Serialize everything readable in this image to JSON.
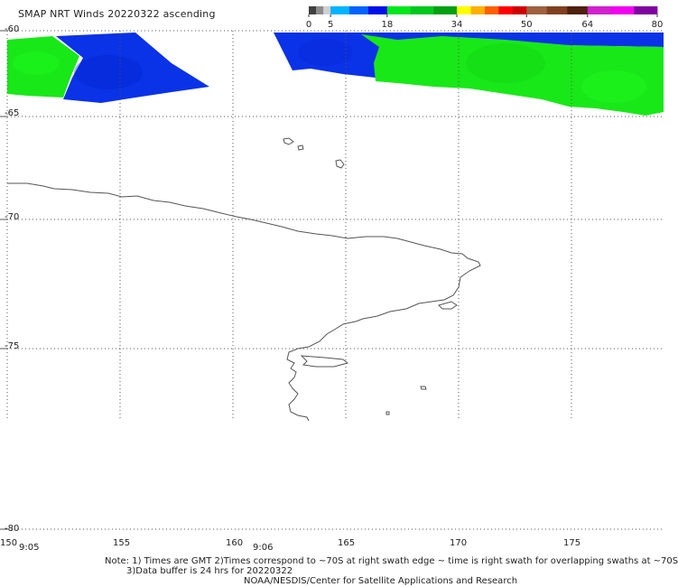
{
  "title": "SMAP NRT Winds 20220322 ascending",
  "colorbar": {
    "tick_labels": [
      "0",
      "5",
      "18",
      "34",
      "50",
      "64",
      "80"
    ],
    "segments": [
      {
        "range": [
          0,
          5
        ],
        "colors": [
          "#404040",
          "#8c8c8c",
          "#d0d0d0"
        ]
      },
      {
        "range": [
          5,
          18
        ],
        "colors": [
          "#00b4ff",
          "#0064ff",
          "#0010e8"
        ]
      },
      {
        "range": [
          18,
          34
        ],
        "colors": [
          "#00e81c",
          "#00c81c",
          "#00a010"
        ]
      },
      {
        "range": [
          34,
          50
        ],
        "colors": [
          "#ffff00",
          "#ffb000",
          "#ff6000",
          "#ff0000",
          "#d00000"
        ]
      },
      {
        "range": [
          50,
          64
        ],
        "colors": [
          "#a06040",
          "#804020",
          "#502010"
        ]
      },
      {
        "range": [
          64,
          80
        ],
        "colors": [
          "#d020d0",
          "#f000f0",
          "#8000a0"
        ]
      }
    ]
  },
  "map": {
    "lat_labels": [
      "-60",
      "-65",
      "-70",
      "-75",
      "-80"
    ],
    "lon_labels": [
      "150",
      "155",
      "160",
      "165",
      "170",
      "175"
    ],
    "time_labels": [
      "9:05",
      "9:06"
    ],
    "wind_colors": {
      "blue": "#0a32e6",
      "green": "#18e818"
    }
  },
  "notes": [
    "Note: 1) Times are GMT 2)Times correspond to ~70S at right swath edge ~ time is right swath for overlapping swaths at ~70S",
    "3)Data buffer is 24 hrs for 20220322",
    "NOAA/NESDIS/Center for Satellite Applications and Research"
  ]
}
